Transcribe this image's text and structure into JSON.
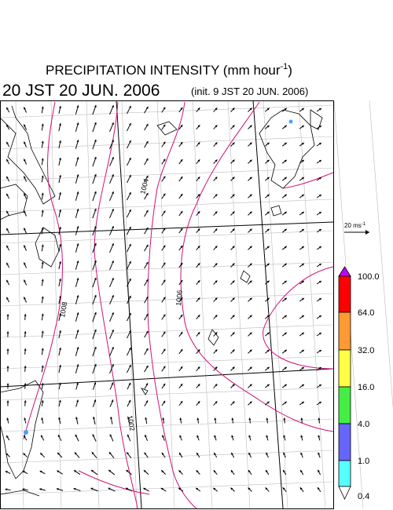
{
  "header": {
    "title": {
      "text": "PRECIPITATION INTENSITY (mm hour",
      "sup": "-1",
      "tail": ")"
    },
    "valid_time": "20 JST 20 JUN. 2006",
    "init_time": "(init. 9 JST 20 JUN. 2006)"
  },
  "wind_legend": {
    "text": "20 ms",
    "sup": "-1"
  },
  "colorbar": {
    "labels": [
      "100.0",
      "64.0",
      "32.0",
      "16.0",
      "4.0",
      "1.0",
      "0.4"
    ]
  },
  "isobar_labels": [
    "1004",
    "1008",
    "1006",
    "1002"
  ]
}
